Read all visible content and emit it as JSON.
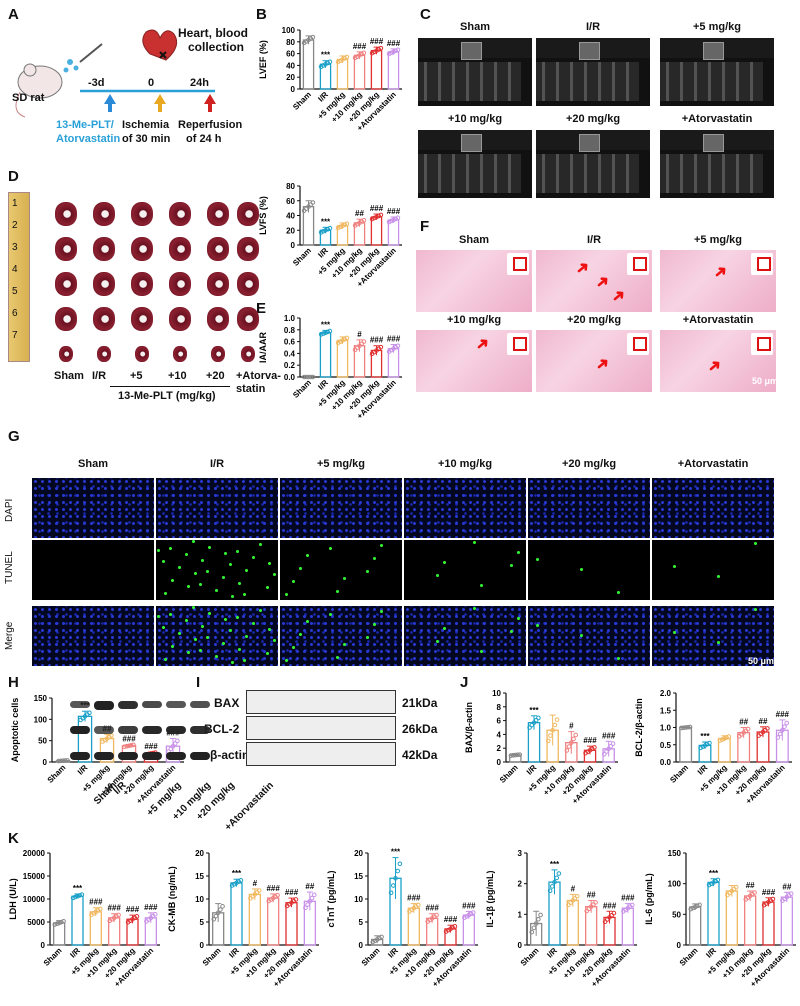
{
  "panels": {
    "A": "A",
    "B": "B",
    "C": "C",
    "D": "D",
    "E": "E",
    "F": "F",
    "G": "G",
    "H": "H",
    "I": "I",
    "J": "J",
    "K": "K"
  },
  "schemeA": {
    "rat": "SD rat",
    "t1": "-3d",
    "t2": "0",
    "t3": "24h",
    "drug1": "13-Me-PLT/",
    "drug2": "Atorvastatin",
    "isch1": "Ischemia",
    "isch2": "of 30 min",
    "rep1": "Reperfusion",
    "rep2": "of 24 h",
    "collect1": "Heart, blood",
    "collect2": "collection"
  },
  "groups": [
    "Sham",
    "I/R",
    "+5 mg/kg",
    "+10 mg/kg",
    "+20 mg/kg",
    "+Atorvastatin"
  ],
  "groupsD": [
    "Sham",
    "I/R",
    "+5",
    "+10",
    "+20",
    "+Atorva-"
  ],
  "groupsD2": "statin",
  "dUnit": "13-Me-PLT (mg/kg)",
  "ruler": [
    "1",
    "2",
    "3",
    "4",
    "5",
    "6",
    "7"
  ],
  "fScale": "50 μm",
  "gRows": [
    "DAPI",
    "TUNEL",
    "Merge"
  ],
  "gScale": "50 μm",
  "blot": {
    "rows": [
      "BAX",
      "BCL-2",
      "β-actin"
    ],
    "kda": [
      "21kDa",
      "26kDa",
      "42kDa"
    ]
  },
  "chart_data": [
    {
      "id": "LVEF",
      "type": "bar",
      "ylabel": "LVEF (%)",
      "yticks": [
        0,
        20,
        40,
        60,
        80,
        100
      ],
      "ylim": [
        0,
        100
      ],
      "categories": [
        "Sham",
        "I/R",
        "+5 mg/kg",
        "+10 mg/kg",
        "+20 mg/kg",
        "+Atorvastatin"
      ],
      "values": [
        83,
        42,
        50,
        57,
        65,
        63
      ],
      "err": [
        7,
        6,
        6,
        6,
        6,
        5
      ],
      "sig": [
        "",
        "***",
        "",
        "###",
        "###",
        "###"
      ]
    },
    {
      "id": "LVFS",
      "type": "bar",
      "ylabel": "LVFS (%)",
      "yticks": [
        0,
        20,
        40,
        60,
        80
      ],
      "ylim": [
        0,
        80
      ],
      "categories": [
        "Sham",
        "I/R",
        "+5 mg/kg",
        "+10 mg/kg",
        "+20 mg/kg",
        "+Atorvastatin"
      ],
      "values": [
        52,
        20,
        26,
        30,
        38,
        34
      ],
      "err": [
        8,
        4,
        4,
        5,
        4,
        4
      ],
      "sig": [
        "",
        "***",
        "",
        "##",
        "###",
        "###"
      ]
    },
    {
      "id": "IA",
      "type": "bar",
      "ylabel": "IA/AAR",
      "yticks": [
        "0.0",
        "0.2",
        "0.4",
        "0.6",
        "0.8",
        "1.0"
      ],
      "ylim": [
        0,
        1
      ],
      "categories": [
        "Sham",
        "I/R",
        "+5 mg/kg",
        "+10 mg/kg",
        "+20 mg/kg",
        "+Atorvastatin"
      ],
      "values": [
        0,
        0.75,
        0.62,
        0.53,
        0.45,
        0.48
      ],
      "err": [
        0,
        0.04,
        0.06,
        0.1,
        0.08,
        0.07
      ],
      "sig": [
        "",
        "***",
        "",
        "#",
        "###",
        "###"
      ]
    },
    {
      "id": "Apop",
      "type": "bar",
      "ylabel": "Apoptotic cells",
      "yticks": [
        0,
        50,
        100,
        150
      ],
      "ylim": [
        0,
        150
      ],
      "categories": [
        "Sham",
        "I/R",
        "+5 mg/kg",
        "+10 mg/kg",
        "+20 mg/kg",
        "+Atorvastatin"
      ],
      "values": [
        3,
        107,
        55,
        38,
        20,
        37
      ],
      "err": [
        1,
        12,
        10,
        3,
        3,
        18
      ],
      "sig": [
        "",
        "***",
        "##",
        "###",
        "###",
        "###"
      ]
    },
    {
      "id": "BAX",
      "type": "bar",
      "ylabel": "BAX/β-actin",
      "yticks": [
        0,
        2,
        4,
        6,
        8,
        10
      ],
      "ylim": [
        0,
        10
      ],
      "categories": [
        "Sham",
        "I/R",
        "+5 mg/kg",
        "+10 mg/kg",
        "+20 mg/kg",
        "+Atorvastatin"
      ],
      "values": [
        1,
        5.7,
        4.6,
        2.8,
        1.7,
        1.9
      ],
      "err": [
        0.1,
        1,
        2.2,
        1.6,
        0.6,
        1.1
      ],
      "sig": [
        "",
        "***",
        "",
        "#",
        "###",
        "###"
      ]
    },
    {
      "id": "BCL2",
      "type": "bar",
      "ylabel": "BCL-2/β-actin",
      "yticks": [
        "0.0",
        "0.5",
        "1.0",
        "1.5",
        "2.0"
      ],
      "ylim": [
        0,
        2
      ],
      "categories": [
        "Sham",
        "I/R",
        "+5 mg/kg",
        "+10 mg/kg",
        "+20 mg/kg",
        "+Atorvastatin"
      ],
      "values": [
        1,
        0.48,
        0.68,
        0.85,
        0.87,
        0.92
      ],
      "err": [
        0.02,
        0.1,
        0.08,
        0.15,
        0.15,
        0.3
      ],
      "sig": [
        "",
        "***",
        "",
        "##",
        "##",
        "###"
      ]
    },
    {
      "id": "LDH",
      "type": "bar",
      "ylabel": "LDH (U/L)",
      "yticks": [
        0,
        5000,
        10000,
        15000,
        20000
      ],
      "ylim": [
        0,
        20000
      ],
      "categories": [
        "Sham",
        "I/R",
        "+5 mg/kg",
        "+10 mg/kg",
        "+20 mg/kg",
        "+Atorvastatin"
      ],
      "values": [
        4800,
        10600,
        7200,
        5900,
        5600,
        5900
      ],
      "err": [
        500,
        500,
        900,
        900,
        900,
        1100
      ],
      "sig": [
        "",
        "***",
        "###",
        "###",
        "###",
        "###"
      ]
    },
    {
      "id": "CKMB",
      "type": "bar",
      "ylabel": "CK-MB (ng/mL)",
      "yticks": [
        0,
        5,
        10,
        15,
        20
      ],
      "ylim": [
        0,
        20
      ],
      "categories": [
        "Sham",
        "I/R",
        "+5 mg/kg",
        "+10 mg/kg",
        "+20 mg/kg",
        "+Atorvastatin"
      ],
      "values": [
        7,
        13.5,
        11,
        10.2,
        9.2,
        9.5
      ],
      "err": [
        2,
        0.8,
        1.2,
        0.9,
        1,
        2
      ],
      "sig": [
        "",
        "***",
        "#",
        "###",
        "###",
        "##"
      ]
    },
    {
      "id": "cTnT",
      "type": "bar",
      "ylabel": "cTnT (pg/mL)",
      "yticks": [
        0,
        5,
        10,
        15,
        20
      ],
      "ylim": [
        0,
        20
      ],
      "categories": [
        "Sham",
        "I/R",
        "+5 mg/kg",
        "+10 mg/kg",
        "+20 mg/kg",
        "+Atorvastatin"
      ],
      "values": [
        1.2,
        14.5,
        8,
        5.8,
        3.5,
        6.5
      ],
      "err": [
        0.8,
        4.5,
        1,
        1,
        0.8,
        0.8
      ],
      "sig": [
        "",
        "***",
        "###",
        "###",
        "###",
        "###"
      ]
    },
    {
      "id": "IL1b",
      "type": "bar",
      "ylabel": "IL-1β (pg/mL)",
      "yticks": [
        0,
        1,
        2,
        3
      ],
      "ylim": [
        0,
        3
      ],
      "categories": [
        "Sham",
        "I/R",
        "+5 mg/kg",
        "+10 mg/kg",
        "+20 mg/kg",
        "+Atorvastatin"
      ],
      "values": [
        0.7,
        2.05,
        1.45,
        1.25,
        0.9,
        1.2
      ],
      "err": [
        0.4,
        0.4,
        0.2,
        0.2,
        0.2,
        0.15
      ],
      "sig": [
        "",
        "***",
        "#",
        "##",
        "###",
        "###"
      ]
    },
    {
      "id": "IL6",
      "type": "bar",
      "ylabel": "IL-6 (pg/mL)",
      "yticks": [
        0,
        50,
        100,
        150
      ],
      "ylim": [
        0,
        150
      ],
      "categories": [
        "Sham",
        "I/R",
        "+5 mg/kg",
        "+10 mg/kg",
        "+20 mg/kg",
        "+Atorvastatin"
      ],
      "values": [
        62,
        102,
        88,
        80,
        70,
        78
      ],
      "err": [
        5,
        6,
        9,
        8,
        7,
        8
      ],
      "sig": [
        "",
        "***",
        "",
        "##",
        "###",
        "##"
      ]
    }
  ],
  "colors": [
    "#888888",
    "#1aa0c8",
    "#f0b860",
    "#f08080",
    "#e03030",
    "#c890e8"
  ]
}
